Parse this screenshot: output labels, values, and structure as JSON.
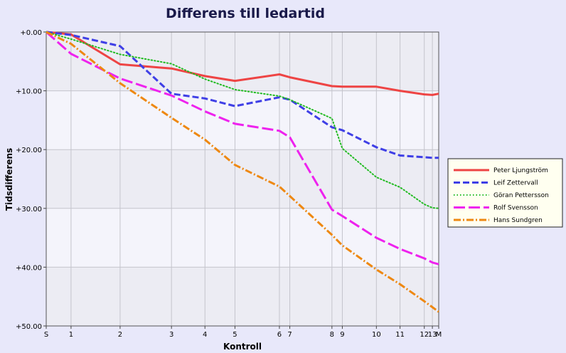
{
  "chart_data": {
    "type": "line",
    "title": "Differens till ledartid",
    "xlabel": "Kontroll",
    "ylabel": "Tidsdifferens",
    "x_categories": [
      "S",
      "1",
      "2",
      "3",
      "4",
      "5",
      "6",
      "7",
      "8",
      "9",
      "10",
      "11",
      "12",
      "13",
      "M"
    ],
    "x_positions": [
      0,
      2.15,
      6.4,
      10.85,
      13.75,
      16.35,
      20.2,
      21.1,
      24.75,
      25.65,
      28.6,
      30.65,
      32.75,
      33.45,
      34
    ],
    "y_tick_labels": [
      "+0.00",
      "+10.00",
      "+20.00",
      "+30.00",
      "+40.00",
      "+50.00"
    ],
    "ylim": [
      0,
      50
    ],
    "y_inverted": true,
    "legend_position": "right",
    "series": [
      {
        "name": "Peter Ljungström",
        "color": "#ee4444",
        "dash": "solid",
        "values": [
          0,
          0.4,
          5.5,
          6.2,
          7.5,
          8.3,
          7.2,
          7.7,
          9.2,
          9.3,
          9.3,
          10.0,
          10.6,
          10.7,
          10.5
        ]
      },
      {
        "name": "Leif Zettervall",
        "color": "#3f3fe6",
        "dash": "dashed",
        "values": [
          0,
          0.5,
          2.4,
          10.5,
          11.3,
          12.6,
          11.1,
          11.5,
          16.2,
          16.7,
          19.6,
          21.0,
          21.3,
          21.4,
          21.4
        ]
      },
      {
        "name": "Göran Pettersson",
        "color": "#22bb22",
        "dash": "dotted",
        "values": [
          0,
          1.2,
          3.8,
          5.4,
          8.0,
          9.8,
          10.9,
          11.5,
          14.7,
          19.8,
          24.7,
          26.4,
          29.3,
          29.9,
          30.0
        ]
      },
      {
        "name": "Rolf Svensson",
        "color": "#ee22ee",
        "dash": "longdash",
        "values": [
          0,
          3.7,
          7.9,
          10.8,
          13.5,
          15.6,
          16.8,
          17.9,
          30.2,
          31.3,
          35.0,
          36.9,
          38.5,
          39.2,
          39.5
        ]
      },
      {
        "name": "Hans Sundgren",
        "color": "#ee8811",
        "dash": "dashdot",
        "values": [
          0,
          2.0,
          8.7,
          14.6,
          18.3,
          22.6,
          26.3,
          27.9,
          34.5,
          36.3,
          40.4,
          42.9,
          45.8,
          46.8,
          47.6
        ]
      }
    ]
  }
}
